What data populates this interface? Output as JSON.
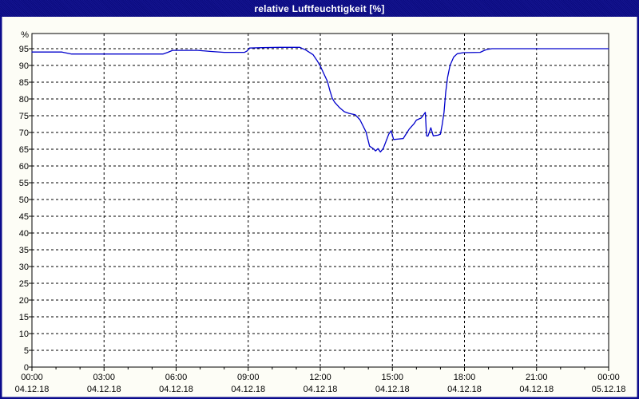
{
  "window": {
    "title": "relative Luftfeuchtigkeit [%]"
  },
  "colors": {
    "titlebar_bg": "#0b0b8c",
    "titlebar_text": "#ffffff",
    "outer_border": "#0b0b8c",
    "page_bg": "#fdfdf6",
    "plot_bg": "#ffffff",
    "plot_border": "#000000",
    "grid": "#000000",
    "label": "#000000",
    "line": "#0000cc"
  },
  "chart_data": {
    "type": "line",
    "title": "relative Luftfeuchtigkeit [%]",
    "unit_label": "%",
    "xlabel": "",
    "ylabel": "%",
    "x_unit": "hours since 04.12.18 00:00",
    "xlim": [
      0,
      24
    ],
    "ylim": [
      0,
      99.5
    ],
    "grid": true,
    "legend": "none",
    "y_ticks": [
      0,
      5,
      10,
      15,
      20,
      25,
      30,
      35,
      40,
      45,
      50,
      55,
      60,
      65,
      70,
      75,
      80,
      85,
      90,
      95
    ],
    "x_ticks": [
      {
        "hour": 0,
        "time": "00:00",
        "date": "04.12.18"
      },
      {
        "hour": 3,
        "time": "03:00",
        "date": "04.12.18"
      },
      {
        "hour": 6,
        "time": "06:00",
        "date": "04.12.18"
      },
      {
        "hour": 9,
        "time": "09:00",
        "date": "04.12.18"
      },
      {
        "hour": 12,
        "time": "12:00",
        "date": "04.12.18"
      },
      {
        "hour": 15,
        "time": "15:00",
        "date": "04.12.18"
      },
      {
        "hour": 18,
        "time": "18:00",
        "date": "04.12.18"
      },
      {
        "hour": 21,
        "time": "21:00",
        "date": "04.12.18"
      },
      {
        "hour": 24,
        "time": "00:00",
        "date": "05.12.18"
      }
    ],
    "minor_x_tick_hours": 1,
    "series": [
      {
        "name": "relative Luftfeuchtigkeit",
        "color": "#0000cc",
        "points": [
          [
            0,
            94
          ],
          [
            1.25,
            94
          ],
          [
            1.45,
            93.7
          ],
          [
            1.65,
            93.4
          ],
          [
            5.45,
            93.4
          ],
          [
            5.65,
            93.9
          ],
          [
            5.85,
            94.5
          ],
          [
            6.9,
            94.5
          ],
          [
            7.4,
            94.2
          ],
          [
            8.0,
            93.9
          ],
          [
            8.85,
            93.9
          ],
          [
            8.95,
            94.3
          ],
          [
            9.05,
            95.2
          ],
          [
            9.6,
            95.3
          ],
          [
            10.3,
            95.4
          ],
          [
            11.15,
            95.4
          ],
          [
            11.4,
            94.6
          ],
          [
            11.7,
            93.2
          ],
          [
            11.87,
            91.4
          ],
          [
            12.0,
            89.8
          ],
          [
            12.15,
            87.5
          ],
          [
            12.3,
            85.2
          ],
          [
            12.4,
            82.5
          ],
          [
            12.5,
            80.2
          ],
          [
            12.6,
            79.0
          ],
          [
            12.8,
            77.4
          ],
          [
            13.0,
            76.2
          ],
          [
            13.2,
            75.7
          ],
          [
            13.45,
            75.3
          ],
          [
            13.65,
            73.8
          ],
          [
            13.9,
            70.2
          ],
          [
            14.05,
            65.9
          ],
          [
            14.2,
            65.2
          ],
          [
            14.3,
            64.5
          ],
          [
            14.4,
            65.2
          ],
          [
            14.5,
            64.2
          ],
          [
            14.62,
            65.2
          ],
          [
            14.85,
            69.5
          ],
          [
            14.95,
            70.5
          ],
          [
            15.05,
            67.9
          ],
          [
            15.45,
            68.2
          ],
          [
            15.55,
            69.3
          ],
          [
            15.7,
            71.0
          ],
          [
            15.9,
            72.6
          ],
          [
            16.0,
            73.7
          ],
          [
            16.2,
            74.3
          ],
          [
            16.3,
            75.3
          ],
          [
            16.37,
            76.0
          ],
          [
            16.42,
            69.0
          ],
          [
            16.48,
            68.9
          ],
          [
            16.6,
            71.4
          ],
          [
            16.7,
            69.0
          ],
          [
            16.9,
            69.2
          ],
          [
            17.0,
            69.5
          ],
          [
            17.07,
            72.2
          ],
          [
            17.15,
            76.0
          ],
          [
            17.22,
            82.0
          ],
          [
            17.3,
            86.5
          ],
          [
            17.4,
            90.0
          ],
          [
            17.55,
            92.5
          ],
          [
            17.7,
            93.5
          ],
          [
            17.95,
            93.8
          ],
          [
            18.65,
            93.9
          ],
          [
            18.8,
            94.4
          ],
          [
            18.95,
            94.8
          ],
          [
            19.15,
            95.0
          ],
          [
            24,
            95.0
          ]
        ]
      }
    ]
  }
}
